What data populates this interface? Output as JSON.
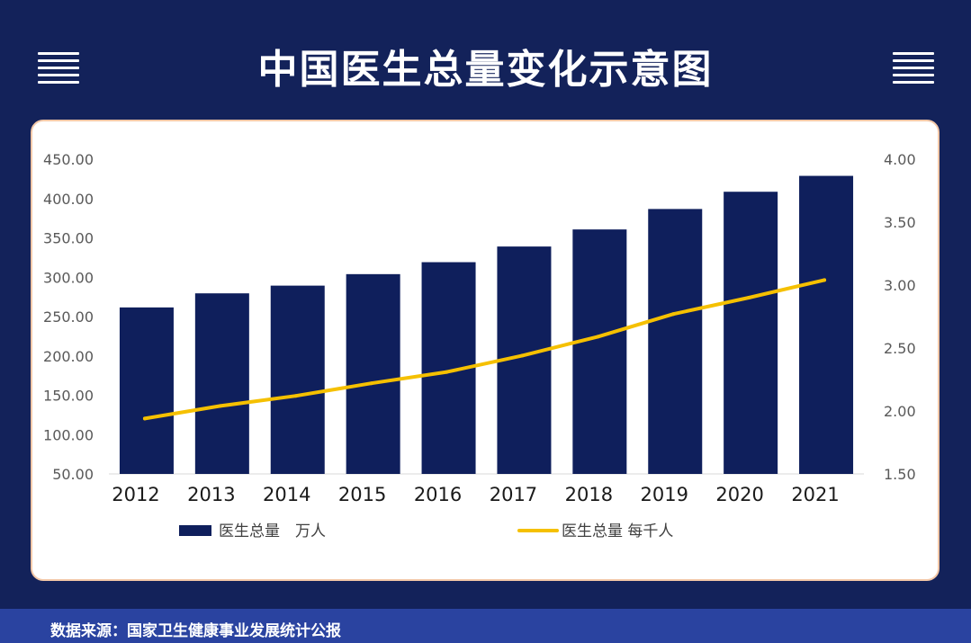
{
  "header": {
    "title": "中国医生总量变化示意图",
    "left_icon": "menu-icon",
    "right_icon": "menu-icon"
  },
  "footer": {
    "source": "数据来源：国家卫生健康事业发展统计公报"
  },
  "colors": {
    "background": "#13225a",
    "bar": "#0f1f5c",
    "line": "#f5c000",
    "footer_band": "#2a43a0",
    "card_border": "#f3c8a8"
  },
  "chart_data": {
    "type": "bar",
    "categories": [
      "2012",
      "2013",
      "2014",
      "2015",
      "2016",
      "2017",
      "2018",
      "2019",
      "2020",
      "2021"
    ],
    "series": [
      {
        "name": "医生总量　万人",
        "type": "bar",
        "axis": "left",
        "values": [
          261.6,
          279.5,
          289.3,
          303.9,
          319.1,
          339.0,
          360.7,
          386.7,
          408.6,
          428.8
        ]
      },
      {
        "name": "医生总量 每千人",
        "type": "line",
        "axis": "right",
        "values": [
          1.94,
          2.04,
          2.12,
          2.22,
          2.31,
          2.44,
          2.59,
          2.77,
          2.9,
          3.04
        ]
      }
    ],
    "y_left": {
      "range": [
        50,
        450
      ],
      "ticks": [
        "50.00",
        "100.00",
        "150.00",
        "200.00",
        "250.00",
        "300.00",
        "350.00",
        "400.00",
        "450.00"
      ]
    },
    "y_right": {
      "range": [
        1.5,
        4.0
      ],
      "ticks": [
        "1.50",
        "2.00",
        "2.50",
        "3.00",
        "3.50",
        "4.00"
      ]
    },
    "grid": false,
    "legend": "bottom"
  }
}
